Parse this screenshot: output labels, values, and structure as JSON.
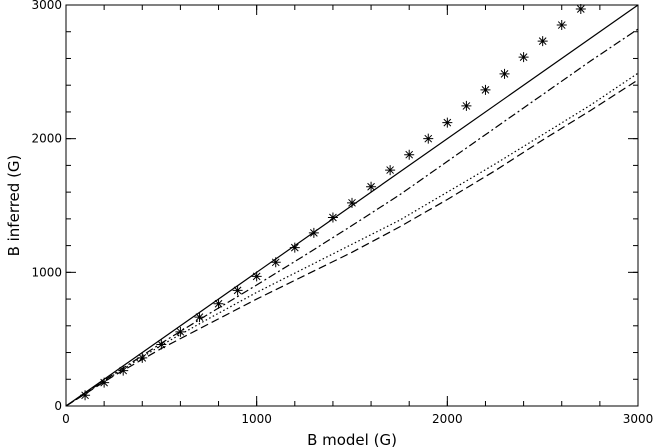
{
  "chart_data": {
    "type": "line",
    "title": "",
    "xlabel": "B model (G)",
    "ylabel": "B inferred (G)",
    "xlim": [
      0,
      3000
    ],
    "ylim": [
      0,
      3000
    ],
    "xticks": [
      0,
      1000,
      2000,
      3000
    ],
    "yticks": [
      0,
      1000,
      2000,
      3000
    ],
    "minor_tick_step": 200,
    "grid": false,
    "legend": "none",
    "series": [
      {
        "style": "solid",
        "x": [
          0,
          3000
        ],
        "y": [
          0,
          3000
        ]
      },
      {
        "style": "dash-dot",
        "x": [
          0,
          250,
          500,
          750,
          1000,
          1250,
          1500,
          1750,
          2000,
          2250,
          2500,
          2750,
          3000
        ],
        "y": [
          0,
          238,
          470,
          690,
          905,
          1125,
          1350,
          1580,
          1830,
          2080,
          2330,
          2580,
          2820
        ]
      },
      {
        "style": "dotted",
        "x": [
          0,
          250,
          500,
          750,
          1000,
          1250,
          1500,
          1750,
          2000,
          2250,
          2500,
          2750,
          3000
        ],
        "y": [
          0,
          232,
          455,
          655,
          850,
          1030,
          1210,
          1390,
          1600,
          1810,
          2030,
          2250,
          2490
        ]
      },
      {
        "style": "dashed",
        "x": [
          0,
          250,
          500,
          750,
          1000,
          1250,
          1500,
          1750,
          2000,
          2250,
          2500,
          2750,
          3000
        ],
        "y": [
          0,
          225,
          430,
          615,
          800,
          975,
          1150,
          1340,
          1545,
          1760,
          1990,
          2210,
          2440
        ]
      },
      {
        "style": "asterisk",
        "x": [
          100,
          200,
          300,
          400,
          500,
          600,
          700,
          800,
          900,
          1000,
          1100,
          1200,
          1300,
          1400,
          1500,
          1600,
          1700,
          1800,
          1900,
          2000,
          2100,
          2200,
          2300,
          2400,
          2500,
          2600,
          2700
        ],
        "y": [
          80,
          175,
          265,
          360,
          460,
          555,
          665,
          765,
          865,
          970,
          1075,
          1185,
          1295,
          1410,
          1520,
          1640,
          1765,
          1880,
          2000,
          2120,
          2245,
          2365,
          2485,
          2610,
          2730,
          2850,
          2970
        ]
      }
    ]
  }
}
